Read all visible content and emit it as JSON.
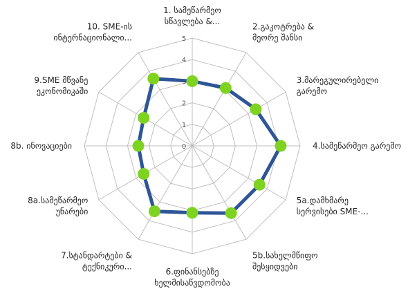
{
  "chart_data": {
    "type": "radar",
    "categories": [
      [
        "1. სამეწარმეო",
        "სწავლება &..."
      ],
      [
        "2.გაკოტრება &",
        "მეორე შანსი"
      ],
      [
        "3.მარეგულირებელი",
        "გარემო"
      ],
      [
        "4.სამეწარმეო გარემო"
      ],
      [
        "5a.დამხმარე",
        "სერვისები SME-..."
      ],
      [
        "5b.სახელმწიფო",
        "შესყიდვები"
      ],
      [
        "6.ფინანსებზე",
        "ხელმისაწვდომობა"
      ],
      [
        "7.სტანდარტები &",
        "ტექნიკური..."
      ],
      [
        "8a.სამეწარმეო",
        "უნარები"
      ],
      [
        "8b. ინოვაციები"
      ],
      [
        "9.SME მწვანე",
        "ეკონომიკაში"
      ],
      [
        "10. SME-ის",
        "ინტერნაციონალი..."
      ]
    ],
    "series": [
      {
        "values": [
          3.0,
          3.1,
          3.4,
          4.1,
          3.6,
          3.6,
          3.1,
          3.5,
          2.6,
          2.5,
          2.6,
          3.6
        ]
      }
    ],
    "rlim": [
      0,
      5
    ],
    "ticks": [
      "0",
      "1",
      "2",
      "3",
      "4",
      "5"
    ],
    "colors": {
      "line": "#2e5597",
      "marker": "#7ed321",
      "grid": "#bfbfbf"
    }
  }
}
